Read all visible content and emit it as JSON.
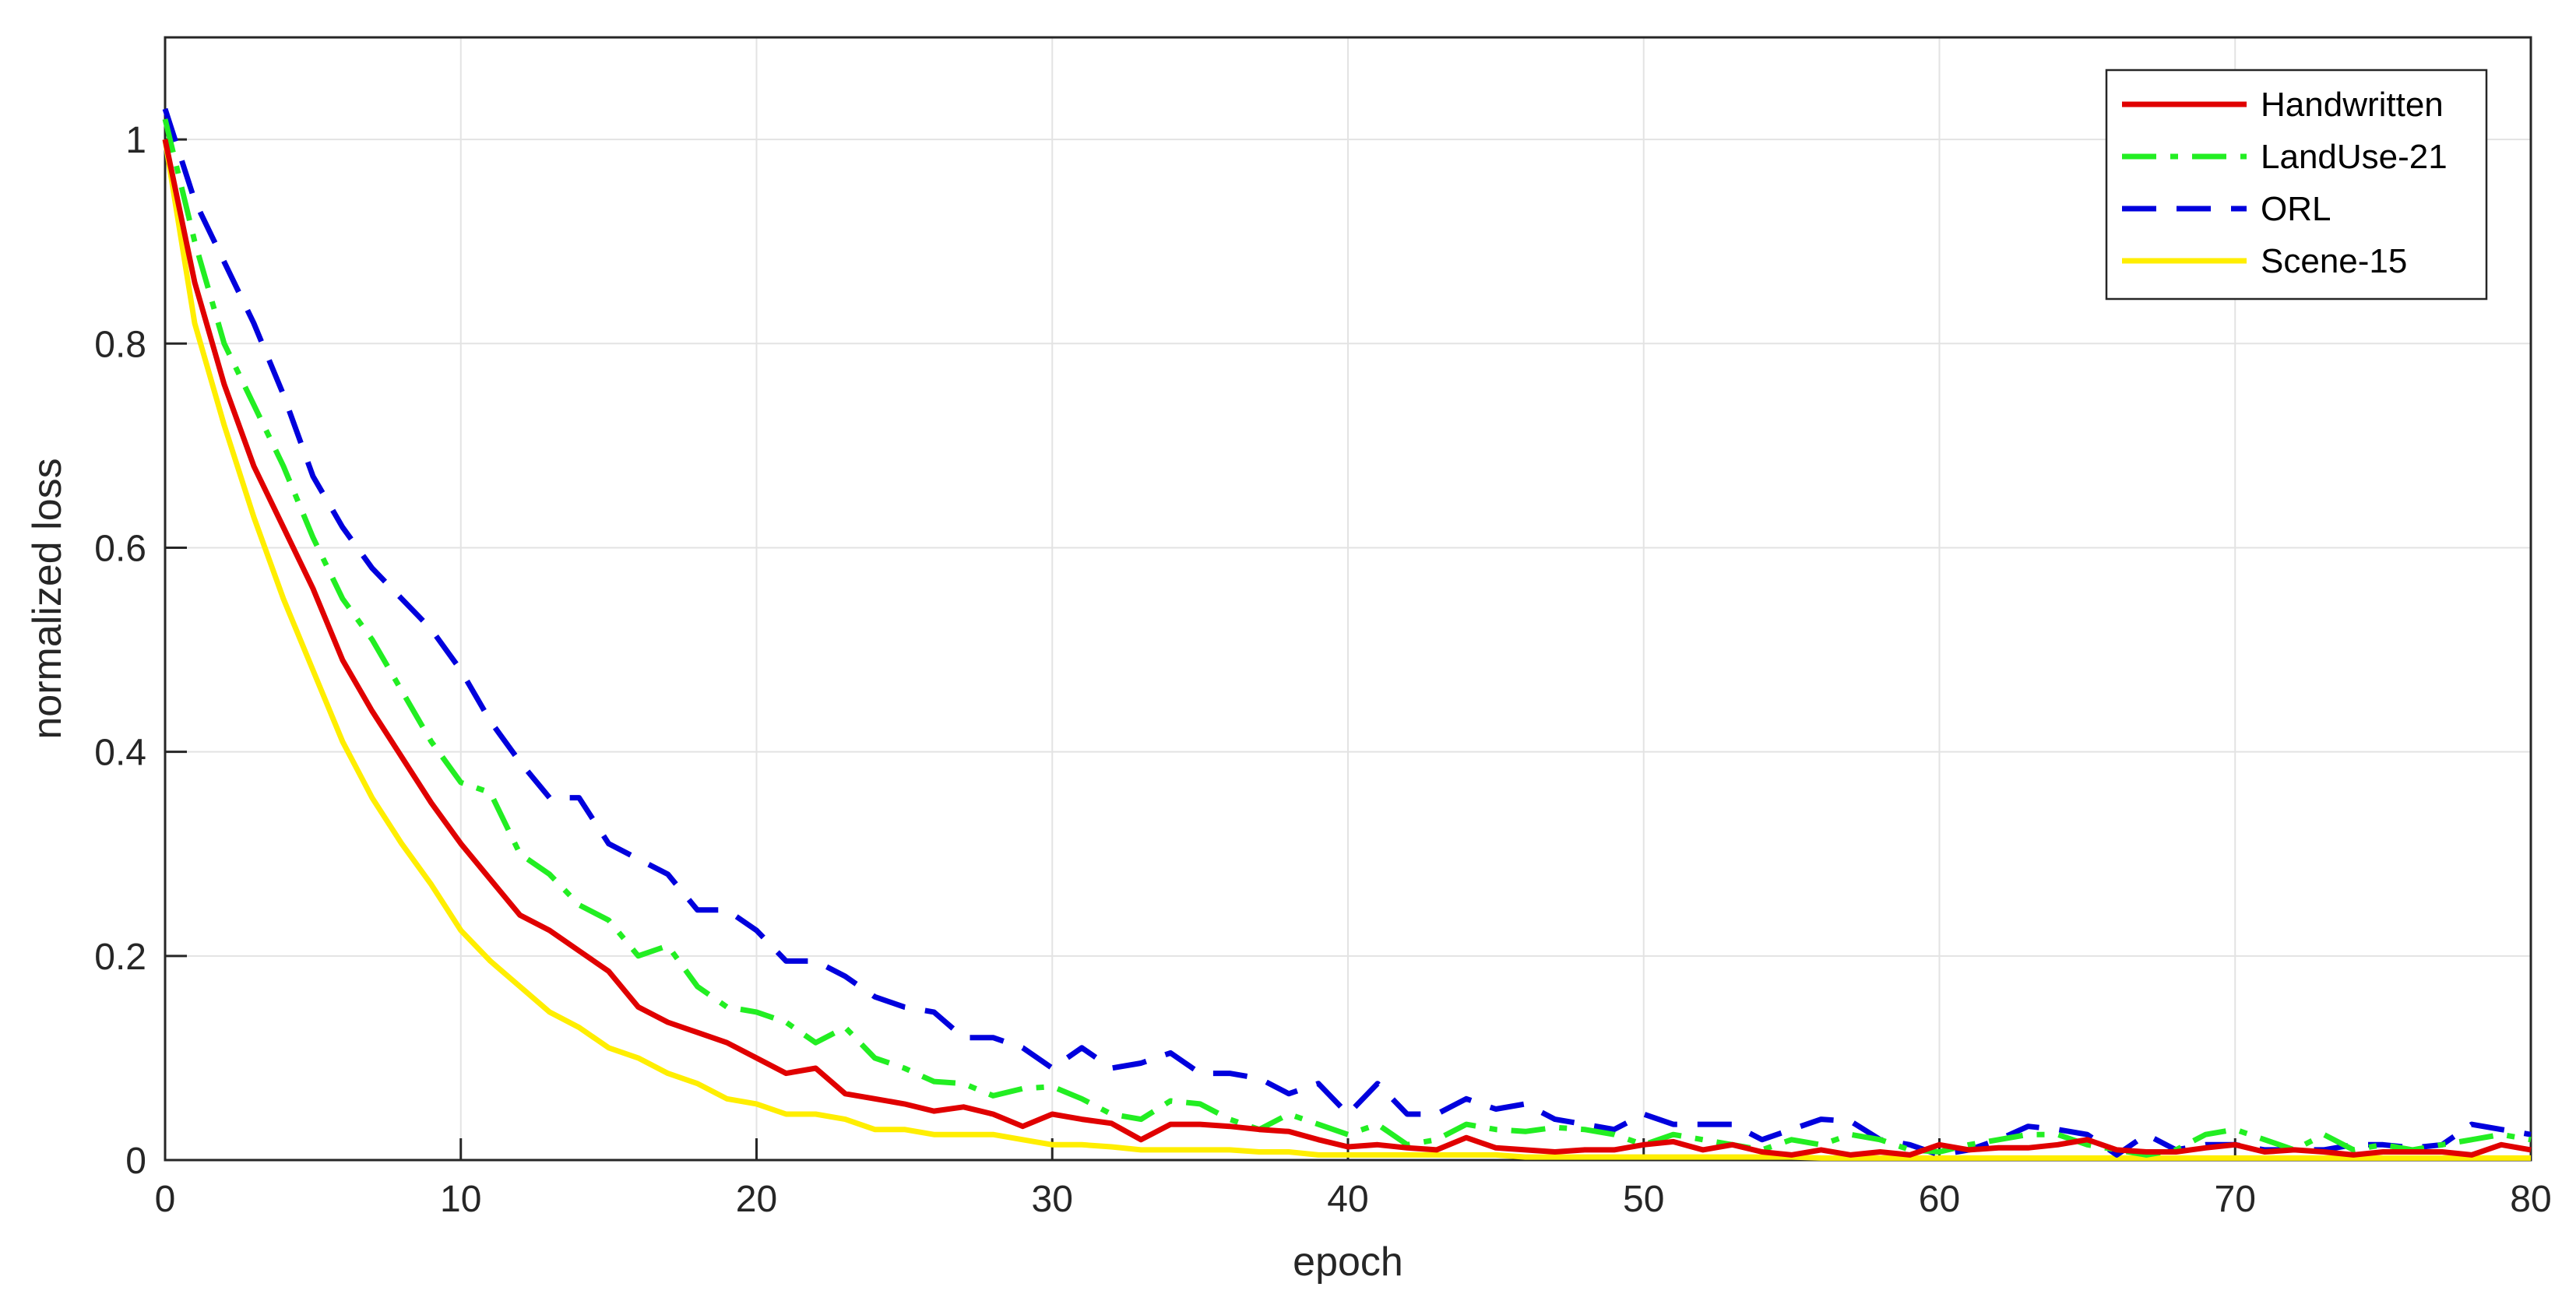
{
  "chart_data": {
    "type": "line",
    "xlabel": "epoch",
    "ylabel": "normalized loss",
    "xlim": [
      0,
      80
    ],
    "ylim": [
      0,
      1.1
    ],
    "xticks": [
      0,
      10,
      20,
      30,
      40,
      50,
      60,
      70,
      80
    ],
    "yticks": [
      0,
      0.2,
      0.4,
      0.6,
      0.8,
      1
    ],
    "ytick_labels": [
      "0",
      "0.2",
      "0.4",
      "0.6",
      "0.8",
      "1"
    ],
    "grid": true,
    "legend_position": "top-right",
    "x": [
      0,
      1,
      2,
      3,
      4,
      5,
      6,
      7,
      8,
      9,
      10,
      11,
      12,
      13,
      14,
      15,
      16,
      17,
      18,
      19,
      20,
      21,
      22,
      23,
      24,
      25,
      26,
      27,
      28,
      29,
      30,
      31,
      32,
      33,
      34,
      35,
      36,
      37,
      38,
      39,
      40,
      41,
      42,
      43,
      44,
      45,
      46,
      47,
      48,
      49,
      50,
      51,
      52,
      53,
      54,
      55,
      56,
      57,
      58,
      59,
      60,
      61,
      62,
      63,
      64,
      65,
      66,
      67,
      68,
      69,
      70,
      71,
      72,
      73,
      74,
      75,
      76,
      77,
      78,
      79,
      80
    ],
    "series": [
      {
        "name": "Handwritten",
        "color": "#e00000",
        "dash": "solid",
        "values": [
          1.0,
          0.86,
          0.76,
          0.68,
          0.62,
          0.56,
          0.49,
          0.44,
          0.395,
          0.35,
          0.31,
          0.275,
          0.24,
          0.225,
          0.205,
          0.185,
          0.15,
          0.135,
          0.125,
          0.115,
          0.1,
          0.085,
          0.09,
          0.065,
          0.06,
          0.055,
          0.048,
          0.052,
          0.045,
          0.033,
          0.045,
          0.04,
          0.036,
          0.02,
          0.035,
          0.035,
          0.033,
          0.03,
          0.028,
          0.02,
          0.013,
          0.015,
          0.012,
          0.01,
          0.022,
          0.012,
          0.01,
          0.008,
          0.01,
          0.01,
          0.015,
          0.018,
          0.01,
          0.015,
          0.008,
          0.005,
          0.01,
          0.005,
          0.008,
          0.005,
          0.015,
          0.01,
          0.012,
          0.012,
          0.015,
          0.02,
          0.01,
          0.008,
          0.008,
          0.012,
          0.015,
          0.008,
          0.01,
          0.008,
          0.005,
          0.008,
          0.008,
          0.008,
          0.005,
          0.015,
          0.01
        ]
      },
      {
        "name": "LandUse-21",
        "color": "#22ee22",
        "dash": "dashdot",
        "values": [
          1.02,
          0.9,
          0.8,
          0.74,
          0.68,
          0.61,
          0.55,
          0.51,
          0.46,
          0.41,
          0.37,
          0.36,
          0.3,
          0.28,
          0.25,
          0.235,
          0.2,
          0.21,
          0.17,
          0.15,
          0.145,
          0.135,
          0.115,
          0.13,
          0.1,
          0.09,
          0.077,
          0.075,
          0.063,
          0.07,
          0.072,
          0.06,
          0.045,
          0.04,
          0.058,
          0.055,
          0.04,
          0.03,
          0.045,
          0.035,
          0.025,
          0.035,
          0.015,
          0.02,
          0.035,
          0.03,
          0.028,
          0.032,
          0.03,
          0.025,
          0.015,
          0.025,
          0.02,
          0.015,
          0.01,
          0.02,
          0.015,
          0.025,
          0.02,
          0.01,
          0.008,
          0.015,
          0.02,
          0.025,
          0.025,
          0.015,
          0.01,
          0.005,
          0.01,
          0.025,
          0.03,
          0.02,
          0.01,
          0.025,
          0.01,
          0.015,
          0.01,
          0.015,
          0.02,
          0.025,
          0.02
        ]
      },
      {
        "name": "ORL",
        "color": "#0000dd",
        "dash": "dashed",
        "values": [
          1.03,
          0.94,
          0.88,
          0.82,
          0.75,
          0.67,
          0.62,
          0.58,
          0.55,
          0.52,
          0.48,
          0.43,
          0.39,
          0.355,
          0.355,
          0.31,
          0.295,
          0.28,
          0.245,
          0.245,
          0.225,
          0.195,
          0.195,
          0.18,
          0.16,
          0.15,
          0.145,
          0.12,
          0.12,
          0.11,
          0.09,
          0.11,
          0.09,
          0.095,
          0.105,
          0.085,
          0.085,
          0.08,
          0.065,
          0.075,
          0.045,
          0.075,
          0.045,
          0.045,
          0.06,
          0.05,
          0.055,
          0.04,
          0.035,
          0.03,
          0.045,
          0.035,
          0.035,
          0.035,
          0.02,
          0.03,
          0.04,
          0.038,
          0.02,
          0.015,
          0.005,
          0.01,
          0.02,
          0.033,
          0.03,
          0.025,
          0.005,
          0.025,
          0.01,
          0.015,
          0.015,
          0.01,
          0.01,
          0.01,
          0.015,
          0.015,
          0.012,
          0.015,
          0.035,
          0.03,
          0.025
        ]
      },
      {
        "name": "Scene-15",
        "color": "#ffee00",
        "dash": "solid",
        "values": [
          1.0,
          0.82,
          0.72,
          0.63,
          0.55,
          0.48,
          0.41,
          0.355,
          0.31,
          0.27,
          0.225,
          0.195,
          0.17,
          0.145,
          0.13,
          0.11,
          0.1,
          0.085,
          0.075,
          0.06,
          0.055,
          0.045,
          0.045,
          0.04,
          0.03,
          0.03,
          0.025,
          0.025,
          0.025,
          0.02,
          0.015,
          0.015,
          0.013,
          0.01,
          0.01,
          0.01,
          0.01,
          0.008,
          0.008,
          0.005,
          0.005,
          0.005,
          0.005,
          0.005,
          0.005,
          0.005,
          0.003,
          0.003,
          0.003,
          0.003,
          0.003,
          0.003,
          0.003,
          0.003,
          0.003,
          0.003,
          0.002,
          0.002,
          0.002,
          0.002,
          0.002,
          0.002,
          0.002,
          0.002,
          0.002,
          0.002,
          0.002,
          0.002,
          0.002,
          0.002,
          0.002,
          0.002,
          0.002,
          0.002,
          0.002,
          0.002,
          0.002,
          0.002,
          0.002,
          0.002,
          0.002
        ]
      }
    ]
  }
}
